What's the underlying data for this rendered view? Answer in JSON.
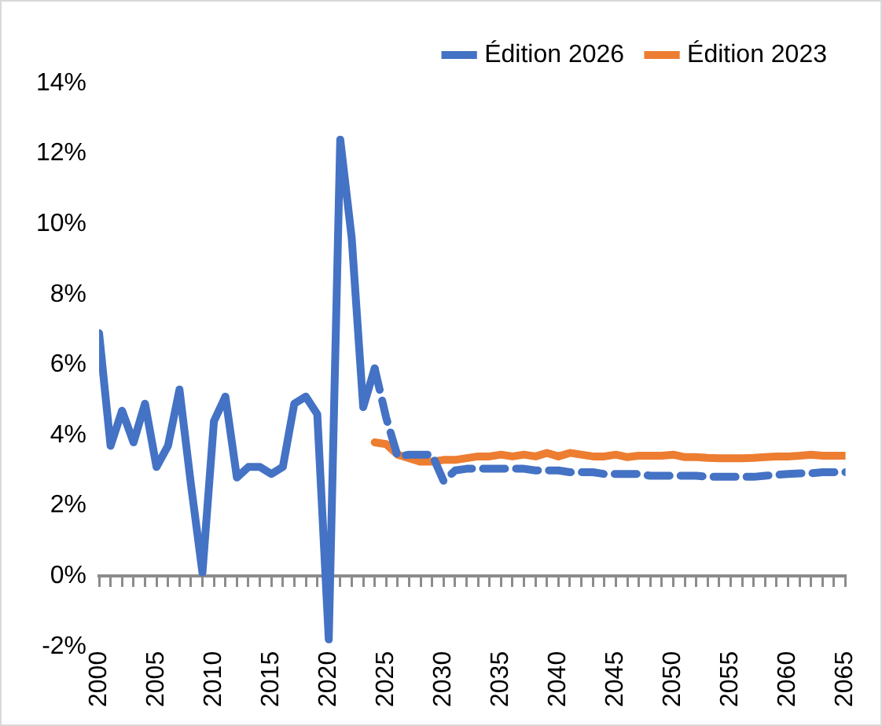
{
  "chart_data": {
    "type": "line",
    "legend": "top right",
    "marker": "none",
    "ylim": [
      -2,
      14
    ],
    "yticks": [
      {
        "value": -2,
        "label": "-2%"
      },
      {
        "value": 0,
        "label": "0%"
      },
      {
        "value": 2,
        "label": "2%"
      },
      {
        "value": 4,
        "label": "4%"
      },
      {
        "value": 6,
        "label": "6%"
      },
      {
        "value": 8,
        "label": "8%"
      },
      {
        "value": 10,
        "label": "10%"
      },
      {
        "value": 12,
        "label": "12%"
      },
      {
        "value": 14,
        "label": "14%"
      }
    ],
    "xlim": [
      2000,
      2065
    ],
    "xticks": [
      2000,
      {
        "value": 2001,
        "label": null
      },
      {
        "value": 2002,
        "label": null
      },
      {
        "value": 2003,
        "label": null
      },
      {
        "value": 2004,
        "label": null
      },
      2005,
      {
        "value": 2006,
        "label": null
      },
      {
        "value": 2007,
        "label": null
      },
      {
        "value": 2008,
        "label": null
      },
      {
        "value": 2009,
        "label": null
      },
      2010,
      {
        "value": 2011,
        "label": null
      },
      {
        "value": 2012,
        "label": null
      },
      {
        "value": 2013,
        "label": null
      },
      {
        "value": 2014,
        "label": null
      },
      2015,
      {
        "value": 2016,
        "label": null
      },
      {
        "value": 2017,
        "label": null
      },
      {
        "value": 2018,
        "label": null
      },
      {
        "value": 2019,
        "label": null
      },
      2020,
      {
        "value": 2021,
        "label": null
      },
      {
        "value": 2022,
        "label": null
      },
      {
        "value": 2023,
        "label": null
      },
      {
        "value": 2024,
        "label": null
      },
      2025,
      {
        "value": 2026,
        "label": null
      },
      {
        "value": 2027,
        "label": null
      },
      {
        "value": 2028,
        "label": null
      },
      {
        "value": 2029,
        "label": null
      },
      2030,
      {
        "value": 2031,
        "label": null
      },
      {
        "value": 2032,
        "label": null
      },
      {
        "value": 2033,
        "label": null
      },
      {
        "value": 2034,
        "label": null
      },
      2035,
      {
        "value": 2036,
        "label": null
      },
      {
        "value": 2037,
        "label": null
      },
      {
        "value": 2038,
        "label": null
      },
      {
        "value": 2039,
        "label": null
      },
      2040,
      {
        "value": 2041,
        "label": null
      },
      {
        "value": 2042,
        "label": null
      },
      {
        "value": 2043,
        "label": null
      },
      {
        "value": 2044,
        "label": null
      },
      2045,
      {
        "value": 2046,
        "label": null
      },
      {
        "value": 2047,
        "label": null
      },
      {
        "value": 2048,
        "label": null
      },
      {
        "value": 2049,
        "label": null
      },
      2050,
      {
        "value": 2051,
        "label": null
      },
      {
        "value": 2052,
        "label": null
      },
      {
        "value": 2053,
        "label": null
      },
      {
        "value": 2054,
        "label": null
      },
      2055,
      {
        "value": 2056,
        "label": null
      },
      {
        "value": 2057,
        "label": null
      },
      {
        "value": 2058,
        "label": null
      },
      {
        "value": 2059,
        "label": null
      },
      2060,
      {
        "value": 2061,
        "label": null
      },
      {
        "value": 2062,
        "label": null
      },
      {
        "value": 2063,
        "label": null
      },
      {
        "value": 2064,
        "label": null
      },
      2065
    ],
    "series": [
      {
        "color": "#4472c4",
        "line_style": "solid",
        "x": [
          2000,
          2001,
          2002,
          2003,
          2004,
          2005,
          2006,
          2007,
          2008,
          2009,
          2010,
          2011,
          2012,
          2013,
          2014,
          2015,
          2016,
          2017,
          2018,
          2019,
          2020,
          2021,
          2022,
          2023,
          2024
        ],
        "values": [
          6.9,
          3.7,
          4.7,
          3.8,
          4.9,
          3.1,
          3.7,
          5.3,
          2.6,
          0.1,
          4.4,
          5.1,
          2.8,
          3.1,
          3.1,
          2.9,
          3.1,
          4.9,
          5.1,
          4.6,
          -1.8,
          12.4,
          9.6,
          4.8,
          5.9
        ]
      },
      {
        "name": "Édition 2026",
        "color": "#4472c4",
        "line_style": "dashed",
        "x": [
          2024,
          2025,
          2026,
          2027,
          2028,
          2029,
          2030,
          2031,
          2032,
          2033,
          2034,
          2035,
          2036,
          2037,
          2038,
          2039,
          2040,
          2041,
          2042,
          2043,
          2044,
          2045,
          2046,
          2047,
          2048,
          2049,
          2050,
          2051,
          2052,
          2053,
          2054,
          2055,
          2056,
          2057,
          2058,
          2059,
          2060,
          2061,
          2062,
          2063,
          2064,
          2065
        ],
        "values": [
          5.9,
          4.5,
          3.4,
          3.45,
          3.45,
          3.45,
          2.7,
          3.0,
          3.05,
          3.05,
          3.05,
          3.05,
          3.05,
          3.05,
          3.0,
          3.0,
          3.0,
          2.95,
          2.95,
          2.95,
          2.9,
          2.9,
          2.9,
          2.9,
          2.85,
          2.85,
          2.85,
          2.85,
          2.85,
          2.82,
          2.82,
          2.82,
          2.82,
          2.82,
          2.85,
          2.88,
          2.9,
          2.92,
          2.92,
          2.95,
          2.95,
          2.95
        ]
      },
      {
        "name": "Édition 2023",
        "color": "#ed7d31",
        "line_style": "solid",
        "x": [
          2024,
          2025,
          2026,
          2027,
          2028,
          2029,
          2030,
          2031,
          2032,
          2033,
          2034,
          2035,
          2036,
          2037,
          2038,
          2039,
          2040,
          2041,
          2042,
          2043,
          2044,
          2045,
          2046,
          2047,
          2048,
          2049,
          2050,
          2051,
          2052,
          2053,
          2054,
          2055,
          2056,
          2057,
          2058,
          2059,
          2060,
          2061,
          2062,
          2063,
          2064,
          2065
        ],
        "values": [
          3.8,
          3.75,
          3.45,
          3.35,
          3.25,
          3.25,
          3.3,
          3.3,
          3.35,
          3.4,
          3.4,
          3.45,
          3.4,
          3.45,
          3.4,
          3.5,
          3.4,
          3.5,
          3.45,
          3.4,
          3.4,
          3.45,
          3.38,
          3.42,
          3.42,
          3.42,
          3.45,
          3.38,
          3.38,
          3.36,
          3.35,
          3.35,
          3.35,
          3.36,
          3.38,
          3.4,
          3.4,
          3.42,
          3.45,
          3.42,
          3.42,
          3.42
        ]
      }
    ]
  }
}
